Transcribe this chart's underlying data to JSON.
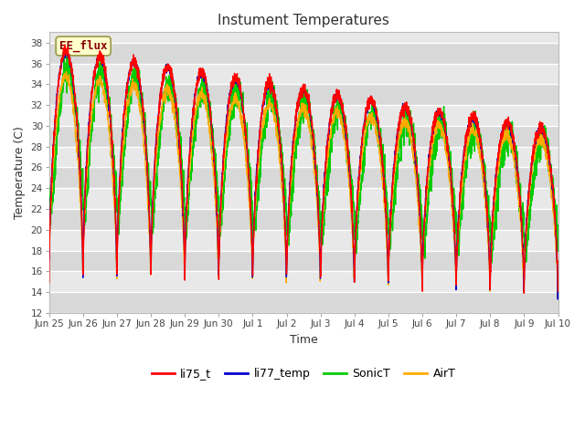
{
  "title": "Instument Temperatures",
  "xlabel": "Time",
  "ylabel": "Temperature (C)",
  "ylim": [
    12,
    39
  ],
  "yticks": [
    12,
    14,
    16,
    18,
    20,
    22,
    24,
    26,
    28,
    30,
    32,
    34,
    36,
    38
  ],
  "xtick_labels": [
    "Jun 25",
    "Jun 26",
    "Jun 27",
    "Jun 28",
    "Jun 29",
    "Jun 30",
    "Jul 1",
    "Jul 2",
    "Jul 3",
    "Jul 4",
    "Jul 5",
    "Jul 6",
    "Jul 7",
    "Jul 8",
    "Jul 9",
    "Jul 10"
  ],
  "legend_labels": [
    "li75_t",
    "li77_temp",
    "SonicT",
    "AirT"
  ],
  "line_colors": {
    "li75_t": "#ff0000",
    "li77_temp": "#0000cc",
    "SonicT": "#00cc00",
    "AirT": "#ffaa00"
  },
  "annotation_text": "EE_flux",
  "annotation_color": "#880000",
  "annotation_bg": "#ffffcc",
  "annotation_edge": "#999944",
  "fig_bg": "#ffffff",
  "plot_bg": "#e8e8e8",
  "grid_color": "#ffffff",
  "total_days": 15,
  "n_points": 3000
}
